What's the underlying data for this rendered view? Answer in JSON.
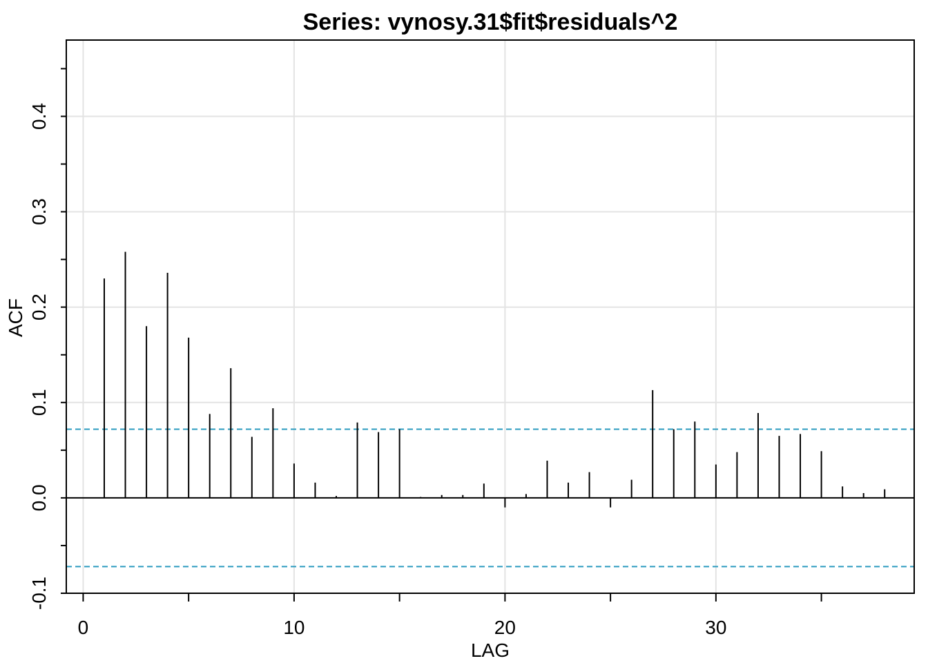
{
  "chart_data": {
    "type": "bar",
    "title": "Series:  vynosy.31$fit$residuals^2",
    "xlabel": "LAG",
    "ylabel": "ACF",
    "xlim": [
      -0.8,
      39.4
    ],
    "ylim": [
      -0.1,
      0.48
    ],
    "x_ticks": [
      0,
      10,
      20,
      30
    ],
    "x_minor_ticks": [
      5,
      15,
      25,
      35
    ],
    "y_ticks": [
      -0.1,
      0.0,
      0.1,
      0.2,
      0.3,
      0.4
    ],
    "y_tick_labels": [
      "-0.1",
      "0.0",
      "0.1",
      "0.2",
      "0.3",
      "0.4"
    ],
    "y_minor_ticks": [
      -0.05,
      0.05,
      0.15,
      0.25,
      0.35,
      0.45
    ],
    "grid": true,
    "confidence_bound": 0.072,
    "confidence_color": "#2b9bbf",
    "lags": [
      1,
      2,
      3,
      4,
      5,
      6,
      7,
      8,
      9,
      10,
      11,
      12,
      13,
      14,
      15,
      16,
      17,
      18,
      19,
      20,
      21,
      22,
      23,
      24,
      25,
      26,
      27,
      28,
      29,
      30,
      31,
      32,
      33,
      34,
      35,
      36,
      37,
      38
    ],
    "values": [
      0.23,
      0.258,
      0.18,
      0.236,
      0.168,
      0.088,
      0.136,
      0.064,
      0.094,
      0.036,
      0.016,
      0.002,
      0.079,
      0.069,
      0.072,
      0.001,
      0.003,
      0.003,
      0.015,
      -0.01,
      0.004,
      0.039,
      0.016,
      0.027,
      -0.01,
      0.019,
      0.113,
      0.072,
      0.08,
      0.035,
      0.048,
      0.089,
      0.065,
      0.067,
      0.049,
      0.012,
      0.005,
      0.009
    ]
  }
}
